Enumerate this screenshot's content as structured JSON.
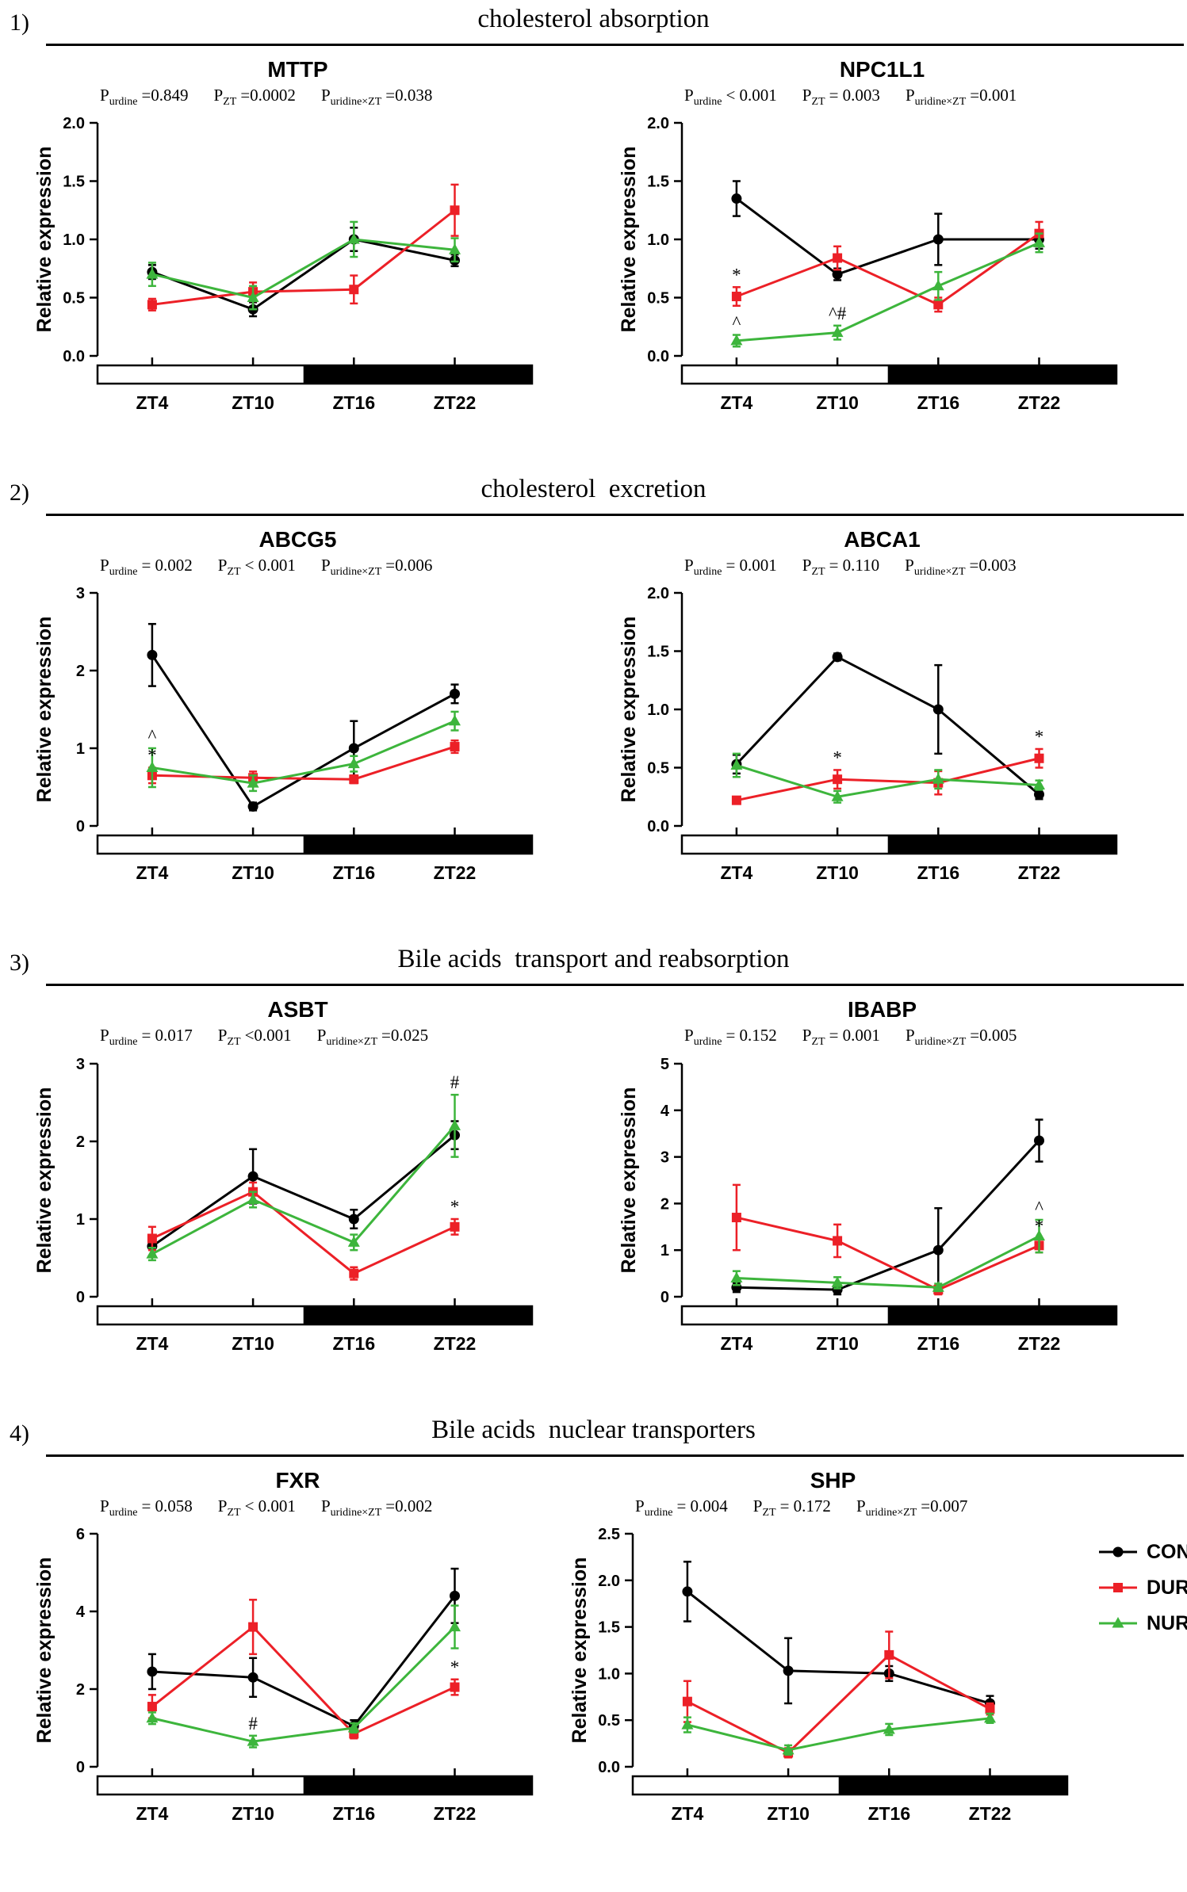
{
  "labels": {
    "p": "P"
  },
  "colors": {
    "con": "#000000",
    "dur": "#EC2027",
    "nur": "#3DB53C"
  },
  "legend": {
    "items": [
      {
        "label": "CON",
        "marker": "circle",
        "color_key": "con"
      },
      {
        "label": "DUR",
        "marker": "square",
        "color_key": "dur"
      },
      {
        "label": "NUR",
        "marker": "triangle",
        "color_key": "nur"
      }
    ]
  },
  "sections": [
    {
      "number": "1)",
      "title": "cholesterol absorption"
    },
    {
      "number": "2)",
      "title": "cholesterol  excretion"
    },
    {
      "number": "3)",
      "title": "Bile acids  transport and reabsorption"
    },
    {
      "number": "4)",
      "title": "Bile acids  nuclear transporters"
    }
  ],
  "chart_data": [
    {
      "type": "line",
      "title": "MTTP",
      "ylabel": "Relative expression",
      "xlabel": "",
      "categories": [
        "ZT4",
        "ZT10",
        "ZT16",
        "ZT22"
      ],
      "ylim": [
        0,
        2
      ],
      "yticks": [
        "0.0",
        "0.5",
        "1.0",
        "1.5",
        "2.0"
      ],
      "pvalues": [
        {
          "sub": "urdine",
          "val": "=0.849"
        },
        {
          "sub": "ZT",
          "val": "=0.0002"
        },
        {
          "sub": "uridine×ZT",
          "val": "=0.038"
        }
      ],
      "series": [
        {
          "name": "CON",
          "color": "con",
          "marker": "circle",
          "values": [
            0.72,
            0.4,
            1.0,
            0.82
          ],
          "err": [
            0.06,
            0.06,
            0.1,
            0.05
          ]
        },
        {
          "name": "DUR",
          "color": "dur",
          "marker": "square",
          "values": [
            0.44,
            0.55,
            0.57,
            1.25
          ],
          "err": [
            0.05,
            0.08,
            0.12,
            0.22
          ]
        },
        {
          "name": "NUR",
          "color": "nur",
          "marker": "triangle",
          "values": [
            0.7,
            0.5,
            1.0,
            0.91
          ],
          "err": [
            0.1,
            0.1,
            0.15,
            0.1
          ]
        }
      ],
      "annotations": []
    },
    {
      "type": "line",
      "title": "NPC1L1",
      "ylabel": "Relative expression",
      "xlabel": "",
      "categories": [
        "ZT4",
        "ZT10",
        "ZT16",
        "ZT22"
      ],
      "ylim": [
        0,
        2
      ],
      "yticks": [
        "0.0",
        "0.5",
        "1.0",
        "1.5",
        "2.0"
      ],
      "pvalues": [
        {
          "sub": "urdine",
          "val": "< 0.001"
        },
        {
          "sub": "ZT",
          "val": "= 0.003"
        },
        {
          "sub": "uridine×ZT",
          "val": "=0.001"
        }
      ],
      "series": [
        {
          "name": "CON",
          "color": "con",
          "marker": "circle",
          "values": [
            1.35,
            0.7,
            1.0,
            1.0
          ],
          "err": [
            0.15,
            0.05,
            0.22,
            0.08
          ]
        },
        {
          "name": "DUR",
          "color": "dur",
          "marker": "square",
          "values": [
            0.51,
            0.84,
            0.44,
            1.05
          ],
          "err": [
            0.08,
            0.1,
            0.06,
            0.1
          ]
        },
        {
          "name": "NUR",
          "color": "nur",
          "marker": "triangle",
          "values": [
            0.13,
            0.2,
            0.6,
            0.97
          ],
          "err": [
            0.05,
            0.06,
            0.12,
            0.08
          ]
        }
      ],
      "annotations": [
        {
          "series": 1,
          "point": 0,
          "text": "*"
        },
        {
          "series": 2,
          "point": 0,
          "text": "^"
        },
        {
          "series": 2,
          "point": 1,
          "text": "^#"
        }
      ]
    },
    {
      "type": "line",
      "title": "ABCG5",
      "ylabel": "Relative expression",
      "xlabel": "",
      "categories": [
        "ZT4",
        "ZT10",
        "ZT16",
        "ZT22"
      ],
      "ylim": [
        0,
        3
      ],
      "yticks": [
        "0",
        "1",
        "2",
        "3"
      ],
      "pvalues": [
        {
          "sub": "urdine",
          "val": "= 0.002"
        },
        {
          "sub": "ZT",
          "val": "< 0.001"
        },
        {
          "sub": "uridine×ZT",
          "val": "=0.006"
        }
      ],
      "series": [
        {
          "name": "CON",
          "color": "con",
          "marker": "circle",
          "values": [
            2.2,
            0.25,
            1.0,
            1.7
          ],
          "err": [
            0.4,
            0.05,
            0.35,
            0.12
          ]
        },
        {
          "name": "DUR",
          "color": "dur",
          "marker": "square",
          "values": [
            0.65,
            0.62,
            0.6,
            1.02
          ],
          "err": [
            0.1,
            0.08,
            0.05,
            0.08
          ]
        },
        {
          "name": "NUR",
          "color": "nur",
          "marker": "triangle",
          "values": [
            0.75,
            0.55,
            0.8,
            1.35
          ],
          "err": [
            0.25,
            0.1,
            0.1,
            0.12
          ]
        }
      ],
      "annotations": [
        {
          "series": 1,
          "point": 0,
          "text": "*"
        },
        {
          "series": 2,
          "point": 0,
          "text": "^"
        }
      ]
    },
    {
      "type": "line",
      "title": "ABCA1",
      "ylabel": "Relative expression",
      "xlabel": "",
      "categories": [
        "ZT4",
        "ZT10",
        "ZT16",
        "ZT22"
      ],
      "ylim": [
        0,
        2
      ],
      "yticks": [
        "0.0",
        "0.5",
        "1.0",
        "1.5",
        "2.0"
      ],
      "pvalues": [
        {
          "sub": "urdine",
          "val": "= 0.001"
        },
        {
          "sub": "ZT",
          "val": "= 0.110"
        },
        {
          "sub": "uridine×ZT",
          "val": "=0.003"
        }
      ],
      "series": [
        {
          "name": "CON",
          "color": "con",
          "marker": "circle",
          "values": [
            0.53,
            1.45,
            1.0,
            0.27
          ],
          "err": [
            0.08,
            0.03,
            0.38,
            0.04
          ]
        },
        {
          "name": "DUR",
          "color": "dur",
          "marker": "square",
          "values": [
            0.22,
            0.4,
            0.37,
            0.58
          ],
          "err": [
            0.03,
            0.08,
            0.1,
            0.08
          ]
        },
        {
          "name": "NUR",
          "color": "nur",
          "marker": "triangle",
          "values": [
            0.52,
            0.25,
            0.4,
            0.35
          ],
          "err": [
            0.1,
            0.05,
            0.08,
            0.04
          ]
        }
      ],
      "annotations": [
        {
          "series": 1,
          "point": 1,
          "text": "*"
        },
        {
          "series": 1,
          "point": 3,
          "text": "*"
        }
      ]
    },
    {
      "type": "line",
      "title": "ASBT",
      "ylabel": "Relative expression",
      "xlabel": "",
      "categories": [
        "ZT4",
        "ZT10",
        "ZT16",
        "ZT22"
      ],
      "ylim": [
        0,
        3
      ],
      "yticks": [
        "0",
        "1",
        "2",
        "3"
      ],
      "pvalues": [
        {
          "sub": "urdine",
          "val": "= 0.017"
        },
        {
          "sub": "ZT",
          "val": "<0.001"
        },
        {
          "sub": "uridine×ZT",
          "val": "=0.025"
        }
      ],
      "series": [
        {
          "name": "CON",
          "color": "con",
          "marker": "circle",
          "values": [
            0.65,
            1.55,
            1.0,
            2.08
          ],
          "err": [
            0.12,
            0.35,
            0.12,
            0.18
          ]
        },
        {
          "name": "DUR",
          "color": "dur",
          "marker": "square",
          "values": [
            0.75,
            1.35,
            0.3,
            0.9
          ],
          "err": [
            0.15,
            0.12,
            0.08,
            0.1
          ]
        },
        {
          "name": "NUR",
          "color": "nur",
          "marker": "triangle",
          "values": [
            0.55,
            1.25,
            0.7,
            2.2
          ],
          "err": [
            0.08,
            0.1,
            0.1,
            0.4
          ]
        }
      ],
      "annotations": [
        {
          "series": 1,
          "point": 3,
          "text": "*"
        },
        {
          "series": 2,
          "point": 3,
          "text": "#"
        }
      ]
    },
    {
      "type": "line",
      "title": "IBABP",
      "ylabel": "Relative expression",
      "xlabel": "",
      "categories": [
        "ZT4",
        "ZT10",
        "ZT16",
        "ZT22"
      ],
      "ylim": [
        0,
        5
      ],
      "yticks": [
        "0",
        "1",
        "2",
        "3",
        "4",
        "5"
      ],
      "pvalues": [
        {
          "sub": "urdine",
          "val": "= 0.152"
        },
        {
          "sub": "ZT",
          "val": "= 0.001"
        },
        {
          "sub": "uridine×ZT",
          "val": "=0.005"
        }
      ],
      "series": [
        {
          "name": "CON",
          "color": "con",
          "marker": "circle",
          "values": [
            0.2,
            0.15,
            1.0,
            3.35
          ],
          "err": [
            0.1,
            0.1,
            0.9,
            0.45
          ]
        },
        {
          "name": "DUR",
          "color": "dur",
          "marker": "square",
          "values": [
            1.7,
            1.2,
            0.15,
            1.1
          ],
          "err": [
            0.7,
            0.35,
            0.1,
            0.15
          ]
        },
        {
          "name": "NUR",
          "color": "nur",
          "marker": "triangle",
          "values": [
            0.4,
            0.3,
            0.2,
            1.3
          ],
          "err": [
            0.15,
            0.12,
            0.08,
            0.35
          ]
        }
      ],
      "annotations": [
        {
          "series": 1,
          "point": 3,
          "text": "*"
        },
        {
          "series": 2,
          "point": 3,
          "text": "^"
        }
      ]
    },
    {
      "type": "line",
      "title": "FXR",
      "ylabel": "Relative expression",
      "xlabel": "",
      "categories": [
        "ZT4",
        "ZT10",
        "ZT16",
        "ZT22"
      ],
      "ylim": [
        0,
        6
      ],
      "yticks": [
        "0",
        "2",
        "4",
        "6"
      ],
      "pvalues": [
        {
          "sub": "urdine",
          "val": "= 0.058"
        },
        {
          "sub": "ZT",
          "val": "< 0.001"
        },
        {
          "sub": "uridine×ZT",
          "val": "=0.002"
        }
      ],
      "series": [
        {
          "name": "CON",
          "color": "con",
          "marker": "circle",
          "values": [
            2.45,
            2.3,
            1.05,
            4.4
          ],
          "err": [
            0.45,
            0.5,
            0.15,
            0.7
          ]
        },
        {
          "name": "DUR",
          "color": "dur",
          "marker": "square",
          "values": [
            1.55,
            3.6,
            0.85,
            2.05
          ],
          "err": [
            0.3,
            0.7,
            0.12,
            0.2
          ]
        },
        {
          "name": "NUR",
          "color": "nur",
          "marker": "triangle",
          "values": [
            1.25,
            0.65,
            1.0,
            3.6
          ],
          "err": [
            0.15,
            0.15,
            0.12,
            0.55
          ]
        }
      ],
      "annotations": [
        {
          "series": 1,
          "point": 3,
          "text": "*"
        },
        {
          "series": 2,
          "point": 1,
          "text": "#"
        }
      ]
    },
    {
      "type": "line",
      "title": "SHP",
      "ylabel": "Relative expression",
      "xlabel": "",
      "categories": [
        "ZT4",
        "ZT10",
        "ZT16",
        "ZT22"
      ],
      "ylim": [
        0,
        2.5
      ],
      "yticks": [
        "0.0",
        "0.5",
        "1.0",
        "1.5",
        "2.0",
        "2.5"
      ],
      "pvalues": [
        {
          "sub": "urdine",
          "val": "= 0.004"
        },
        {
          "sub": "ZT",
          "val": "= 0.172"
        },
        {
          "sub": "uridine×ZT",
          "val": "=0.007"
        }
      ],
      "series": [
        {
          "name": "CON",
          "color": "con",
          "marker": "circle",
          "values": [
            1.88,
            1.03,
            1.0,
            0.68
          ],
          "err": [
            0.32,
            0.35,
            0.08,
            0.08
          ]
        },
        {
          "name": "DUR",
          "color": "dur",
          "marker": "square",
          "values": [
            0.7,
            0.15,
            1.2,
            0.62
          ],
          "err": [
            0.22,
            0.05,
            0.25,
            0.06
          ]
        },
        {
          "name": "NUR",
          "color": "nur",
          "marker": "triangle",
          "values": [
            0.45,
            0.18,
            0.4,
            0.52
          ],
          "err": [
            0.08,
            0.05,
            0.06,
            0.05
          ]
        }
      ],
      "annotations": []
    }
  ]
}
